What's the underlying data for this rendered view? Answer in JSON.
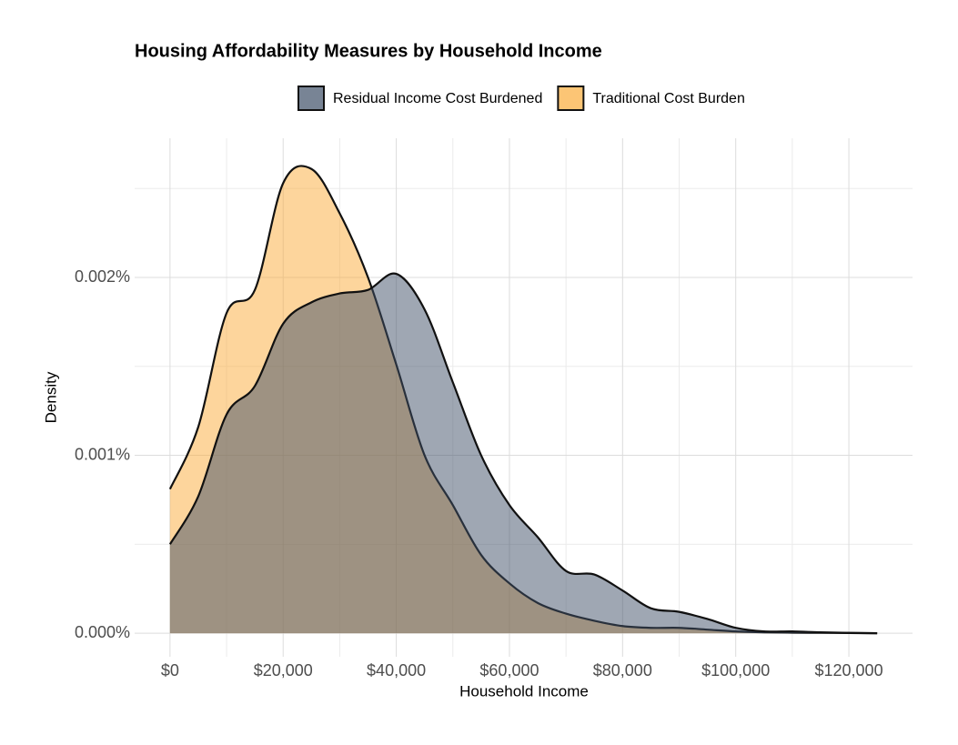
{
  "chart_data": {
    "type": "density",
    "title": "Housing Affordability Measures by Household Income",
    "x_label": "Household Income",
    "y_label": "Density",
    "x": [
      0,
      5000,
      10000,
      15000,
      20000,
      25000,
      30000,
      35000,
      40000,
      45000,
      50000,
      55000,
      60000,
      65000,
      70000,
      75000,
      80000,
      85000,
      90000,
      95000,
      100000,
      105000,
      110000,
      115000,
      120000,
      125000
    ],
    "series": [
      {
        "name": "Residual Income Cost Burdened",
        "color": "#3f5068",
        "values": [
          0.0005,
          0.00077,
          0.00123,
          0.00139,
          0.00174,
          0.00186,
          0.00191,
          0.00193,
          0.00202,
          0.00182,
          0.00141,
          0.001,
          0.00072,
          0.00054,
          0.00035,
          0.00033,
          0.00024,
          0.00014,
          0.00012,
          8e-05,
          3e-05,
          1e-05,
          1e-05,
          5e-06,
          2e-06,
          0
        ]
      },
      {
        "name": "Traditional Cost Burden",
        "color": "#fbac3a",
        "values": [
          0.00081,
          0.00116,
          0.0018,
          0.00193,
          0.00253,
          0.00261,
          0.00236,
          0.002,
          0.00151,
          0.001,
          0.00072,
          0.00044,
          0.00028,
          0.00017,
          0.00011,
          7e-05,
          4e-05,
          3e-05,
          3e-05,
          2e-05,
          1e-05,
          5e-06,
          3e-06,
          2e-06,
          1e-06,
          0
        ]
      }
    ],
    "xlim": [
      -6250,
      131250
    ],
    "ylim": [
      -0.0001325,
      0.0027825
    ],
    "xticks": [
      {
        "value": 0,
        "label": "$0"
      },
      {
        "value": 20000,
        "label": "$20,000"
      },
      {
        "value": 40000,
        "label": "$40,000"
      },
      {
        "value": 60000,
        "label": "$60,000"
      },
      {
        "value": 80000,
        "label": "$80,000"
      },
      {
        "value": 100000,
        "label": "$100,000"
      },
      {
        "value": 120000,
        "label": "$120,000"
      }
    ],
    "yticks": [
      {
        "value": 0,
        "label": "0.000%"
      },
      {
        "value": 0.001,
        "label": "0.001%"
      },
      {
        "value": 0.002,
        "label": "0.002%"
      }
    ],
    "xminorticks": [
      10000,
      30000,
      50000,
      70000,
      90000,
      110000
    ],
    "yminorticks": [
      0.0005,
      0.0015,
      0.0025
    ],
    "grid": true,
    "legend": "top"
  }
}
